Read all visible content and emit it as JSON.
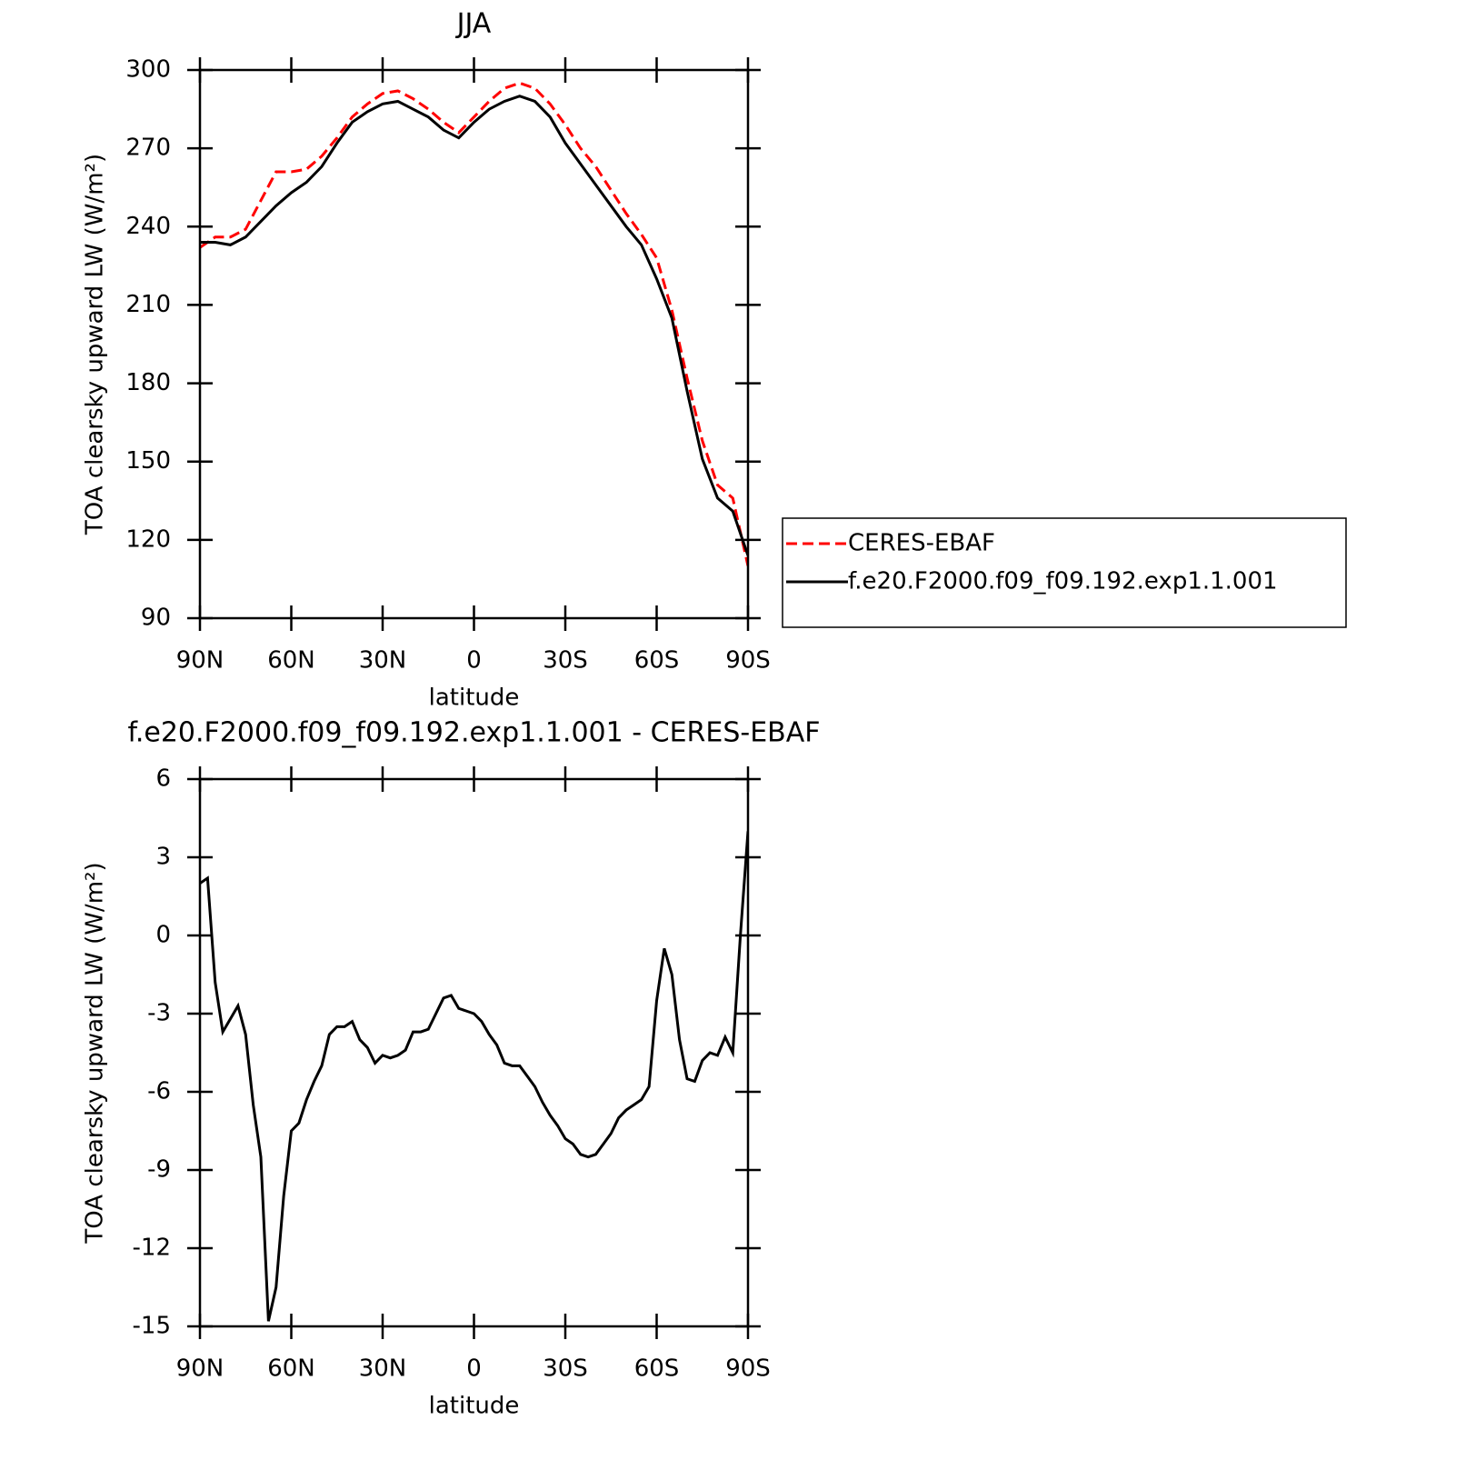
{
  "chart_data": [
    {
      "type": "line",
      "title": "JJA",
      "x_label": "latitude",
      "y_label": "TOA clearsky upward LW (W/m²)",
      "x": [
        90,
        85,
        80,
        75,
        70,
        65,
        60,
        55,
        50,
        45,
        40,
        35,
        30,
        25,
        20,
        15,
        10,
        5,
        0,
        -5,
        -10,
        -15,
        -20,
        -25,
        -30,
        -35,
        -40,
        -45,
        -50,
        -55,
        -60,
        -65,
        -70,
        -75,
        -80,
        -85,
        -90
      ],
      "series": [
        {
          "name": "CERES-EBAF",
          "color": "#ff0000",
          "linestyle": "dashed",
          "values": [
            232,
            236,
            236,
            239,
            250,
            261,
            261,
            262,
            267,
            274,
            282,
            287,
            291,
            292,
            289,
            285,
            280,
            276,
            282,
            288,
            293,
            295,
            293,
            287,
            279,
            270,
            263,
            254,
            245,
            237,
            228,
            208,
            182,
            158,
            141,
            136,
            110
          ]
        },
        {
          "name": "f.e20.F2000.f09_f09.192.exp1.1.001",
          "color": "#000000",
          "linestyle": "solid",
          "values": [
            234,
            234,
            233,
            236,
            242,
            248,
            253,
            257,
            263,
            272,
            280,
            284,
            287,
            288,
            285,
            282,
            277,
            274,
            280,
            285,
            288,
            290,
            288,
            282,
            272,
            264,
            256,
            248,
            240,
            233,
            220,
            205,
            177,
            151,
            136,
            131,
            114
          ]
        }
      ],
      "xlim": [
        90,
        -90
      ],
      "xticks": [
        {
          "value": 90,
          "label": "90N"
        },
        {
          "value": 60,
          "label": "60N"
        },
        {
          "value": 30,
          "label": "30N"
        },
        0,
        {
          "value": -30,
          "label": "30S"
        },
        {
          "value": -60,
          "label": "60S"
        },
        {
          "value": -90,
          "label": "90S"
        }
      ],
      "ylim": [
        90,
        300
      ],
      "yticks": [
        90,
        120,
        150,
        180,
        210,
        240,
        270,
        300
      ],
      "legend": "right"
    },
    {
      "type": "line",
      "title": "f.e20.F2000.f09_f09.192.exp1.1.001 - CERES-EBAF",
      "x_label": "latitude",
      "y_label": "TOA clearsky upward LW (W/m²)",
      "x": [
        90,
        87.5,
        85,
        82.5,
        80,
        77.5,
        75,
        72.5,
        70,
        67.5,
        65,
        62.5,
        60,
        57.5,
        55,
        52.5,
        50,
        47.5,
        45,
        42.5,
        40,
        37.5,
        35,
        32.5,
        30,
        27.5,
        25,
        22.5,
        20,
        17.5,
        15,
        12.5,
        10,
        7.5,
        5,
        2.5,
        0,
        -2.5,
        -5,
        -7.5,
        -10,
        -12.5,
        -15,
        -17.5,
        -20,
        -22.5,
        -25,
        -27.5,
        -30,
        -32.5,
        -35,
        -37.5,
        -40,
        -42.5,
        -45,
        -47.5,
        -50,
        -52.5,
        -55,
        -57.5,
        -60,
        -62.5,
        -65,
        -67.5,
        -70,
        -72.5,
        -75,
        -77.5,
        -80,
        -82.5,
        -85,
        -87.5,
        -90
      ],
      "series": [
        {
          "name": "f.e20.F2000.f09_f09.192.exp1.1.001 - CERES-EBAF",
          "color": "#000000",
          "linestyle": "solid",
          "values": [
            2.0,
            2.2,
            -1.8,
            -3.7,
            -3.2,
            -2.7,
            -3.8,
            -6.5,
            -8.5,
            -14.8,
            -13.5,
            -10,
            -7.5,
            -7.2,
            -6.3,
            -5.6,
            -5,
            -3.8,
            -3.5,
            -3.5,
            -3.3,
            -4,
            -4.3,
            -4.9,
            -4.6,
            -4.7,
            -4.6,
            -4.4,
            -3.7,
            -3.7,
            -3.6,
            -3.0,
            -2.4,
            -2.3,
            -2.8,
            -2.9,
            -3.0,
            -3.3,
            -3.8,
            -4.2,
            -4.9,
            -5.0,
            -5.0,
            -5.4,
            -5.8,
            -6.4,
            -6.9,
            -7.3,
            -7.8,
            -8.0,
            -8.4,
            -8.5,
            -8.4,
            -8.0,
            -7.6,
            -7.0,
            -6.7,
            -6.5,
            -6.3,
            -5.8,
            -2.5,
            -0.5,
            -1.5,
            -4.0,
            -5.5,
            -5.6,
            -4.8,
            -4.5,
            -4.6,
            -3.9,
            -4.5,
            0,
            4.0
          ]
        }
      ],
      "xlim": [
        90,
        -90
      ],
      "xticks": [
        {
          "value": 90,
          "label": "90N"
        },
        {
          "value": 60,
          "label": "60N"
        },
        {
          "value": 30,
          "label": "30N"
        },
        0,
        {
          "value": -30,
          "label": "30S"
        },
        {
          "value": -60,
          "label": "60S"
        },
        {
          "value": -90,
          "label": "90S"
        }
      ],
      "ylim": [
        -15,
        6
      ],
      "yticks": [
        -15,
        -12,
        -9,
        -6,
        -3,
        0,
        3,
        6
      ]
    }
  ]
}
